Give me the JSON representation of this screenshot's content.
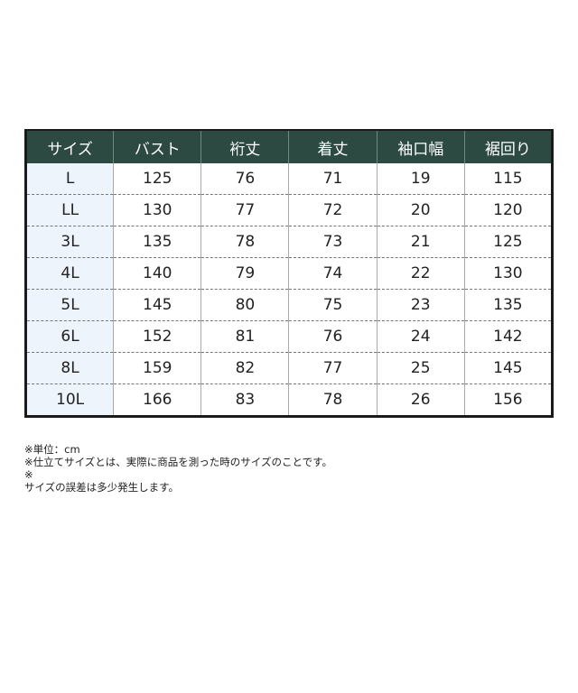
{
  "table": {
    "headers": [
      "サイズ",
      "バスト",
      "裄丈",
      "着丈",
      "袖口幅",
      "裾回り"
    ],
    "rows": [
      [
        "L",
        "125",
        "76",
        "71",
        "19",
        "115"
      ],
      [
        "LL",
        "130",
        "77",
        "72",
        "20",
        "120"
      ],
      [
        "3L",
        "135",
        "78",
        "73",
        "21",
        "125"
      ],
      [
        "4L",
        "140",
        "79",
        "74",
        "22",
        "130"
      ],
      [
        "5L",
        "145",
        "80",
        "75",
        "23",
        "135"
      ],
      [
        "6L",
        "152",
        "81",
        "76",
        "24",
        "142"
      ],
      [
        "8L",
        "159",
        "82",
        "77",
        "25",
        "145"
      ],
      [
        "10L",
        "166",
        "83",
        "78",
        "26",
        "156"
      ]
    ],
    "header_color": "#2c4a42",
    "size_column_color": "#edf4fc"
  },
  "notes": [
    "※単位：cm",
    "※仕立てサイズとは、実際に商品を測った時のサイズのことです。",
    "※",
    "サイズの誤差は多少発生します。"
  ]
}
